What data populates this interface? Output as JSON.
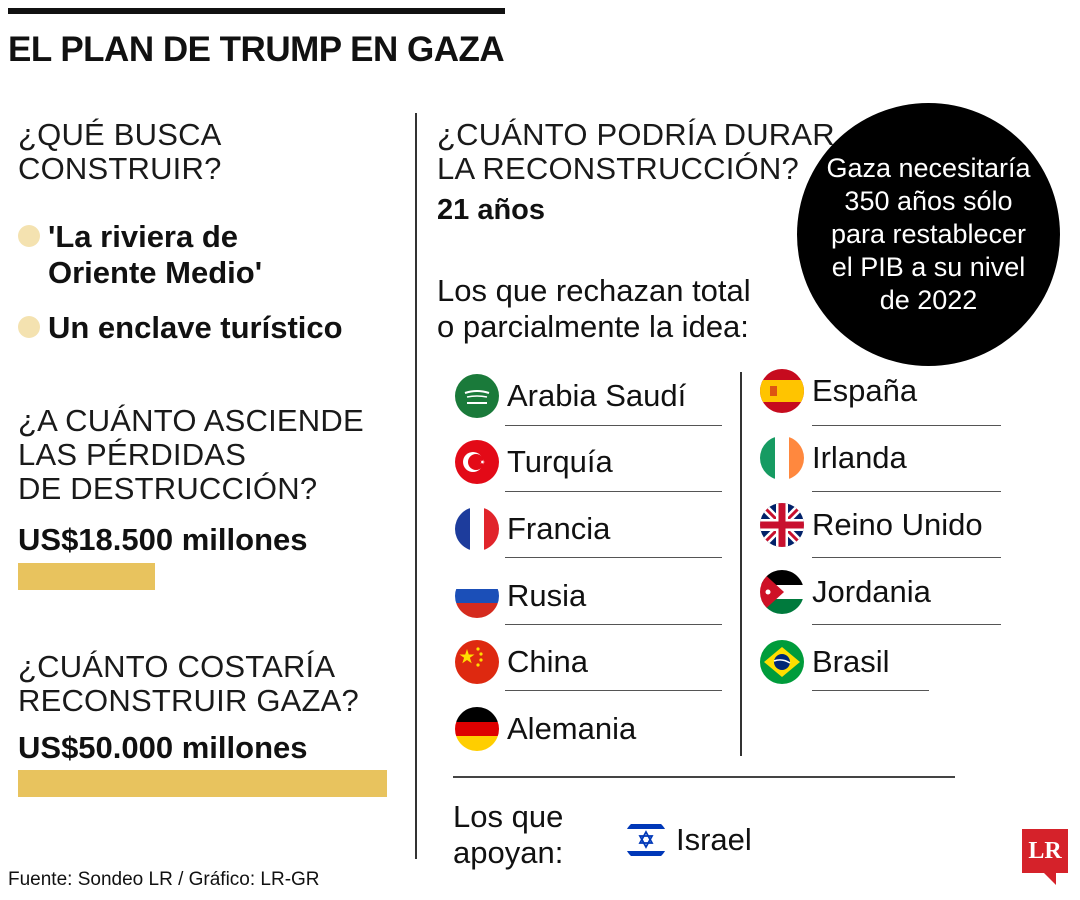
{
  "title": "EL PLAN DE TRUMP EN GAZA",
  "left": {
    "q1": "¿QUÉ BUSCA\nCONSTRUIR?",
    "bullets": [
      "'La riviera de\nOriente Medio'",
      "Un enclave turístico"
    ],
    "q2": "¿A CUÁNTO ASCIENDE\nLAS PÉRDIDAS\nDE DESTRUCCIÓN?",
    "a2": "US$18.500 millones",
    "q3": "¿CUÁNTO COSTARÍA\nRECONSTRUIR GAZA?",
    "a3": "US$50.000 millones",
    "bar_color": "#e8c35e"
  },
  "right": {
    "q_duration": "¿CUÁNTO PODRÍA DURAR\nLA RECONSTRUCCIÓN?",
    "a_duration": "21 años",
    "circle_text": "Gaza necesitaría\n350 años sólo\npara restablecer\nel PIB a su nivel\nde 2022",
    "reject_label": "Los que rechazan total\no parcialmente la idea:",
    "reject_col1": [
      {
        "name": "Arabia Saudí",
        "icon": "flag-saudi-arabia"
      },
      {
        "name": "Turquía",
        "icon": "flag-turkey"
      },
      {
        "name": "Francia",
        "icon": "flag-france"
      },
      {
        "name": "Rusia",
        "icon": "flag-russia"
      },
      {
        "name": "China",
        "icon": "flag-china"
      },
      {
        "name": "Alemania",
        "icon": "flag-germany"
      }
    ],
    "reject_col2": [
      {
        "name": "España",
        "icon": "flag-spain"
      },
      {
        "name": "Irlanda",
        "icon": "flag-ireland"
      },
      {
        "name": "Reino Unido",
        "icon": "flag-united-kingdom"
      },
      {
        "name": "Jordania",
        "icon": "flag-jordan"
      },
      {
        "name": "Brasil",
        "icon": "flag-brazil"
      }
    ],
    "support_label": "Los que\napoyan:",
    "support": [
      {
        "name": "Israel",
        "icon": "flag-israel"
      }
    ]
  },
  "footer": "Fuente: Sondeo LR / Gráfico: LR-GR",
  "logo": "LR"
}
